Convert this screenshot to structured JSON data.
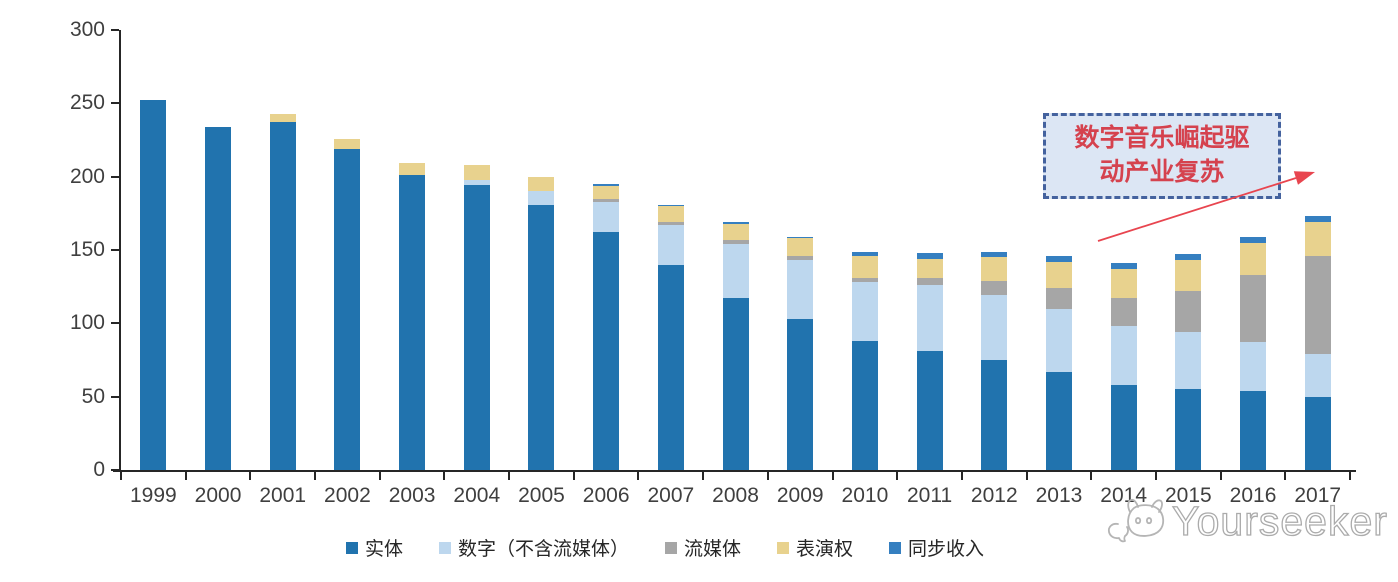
{
  "chart_data": {
    "type": "bar",
    "stacked": true,
    "title": "",
    "xlabel": "",
    "ylabel": "",
    "categories": [
      "1999",
      "2000",
      "2001",
      "2002",
      "2003",
      "2004",
      "2005",
      "2006",
      "2007",
      "2008",
      "2009",
      "2010",
      "2011",
      "2012",
      "2013",
      "2014",
      "2015",
      "2016",
      "2017"
    ],
    "series": [
      {
        "name": "实体",
        "color": "#2173AE",
        "values": [
          252,
          234,
          237,
          219,
          201,
          194,
          181,
          162,
          140,
          117,
          103,
          88,
          81,
          75,
          67,
          58,
          55,
          54,
          50
        ]
      },
      {
        "name": "数字（不含流媒体）",
        "color": "#BDD7EE",
        "values": [
          0,
          0,
          0,
          0,
          0,
          4,
          9,
          21,
          27,
          37,
          40,
          40,
          45,
          44,
          43,
          40,
          39,
          33,
          29
        ]
      },
      {
        "name": "流媒体",
        "color": "#A6A6A6",
        "values": [
          0,
          0,
          0,
          0,
          0,
          0,
          0,
          2,
          2,
          3,
          3,
          3,
          5,
          10,
          14,
          19,
          28,
          46,
          67
        ]
      },
      {
        "name": "表演权",
        "color": "#E8D28E",
        "values": [
          0,
          0,
          6,
          7,
          8,
          10,
          10,
          9,
          11,
          11,
          12,
          15,
          13,
          16,
          18,
          20,
          21,
          22,
          23
        ]
      },
      {
        "name": "同步收入",
        "color": "#357FC0",
        "values": [
          0,
          0,
          0,
          0,
          0,
          0,
          0,
          1,
          1,
          1,
          1,
          3,
          4,
          4,
          4,
          4,
          4,
          4,
          4
        ]
      }
    ],
    "ylim": [
      0,
      300
    ],
    "yticks": [
      0,
      50,
      100,
      150,
      200,
      250,
      300
    ],
    "grid": false,
    "legend_position": "bottom",
    "annotation": {
      "text": "数字音乐崛起驱动产业复苏",
      "line1": "数字音乐崛起驱",
      "line2": "动产业复苏",
      "text_color": "#D5424E",
      "box_fill": "#DCE6F4",
      "box_border": "#44629E",
      "arrow_color": "#E8454F"
    }
  },
  "watermark": {
    "text": "Yourseeker",
    "logo": "cat-speech-bubble-logo",
    "color": "#ababab"
  }
}
